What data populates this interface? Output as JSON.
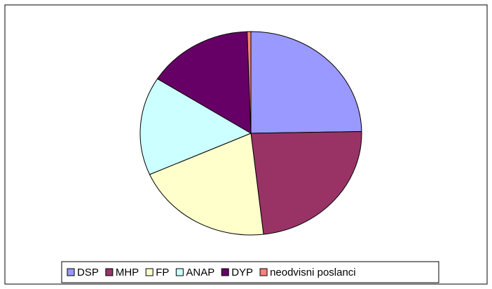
{
  "chart_data": {
    "type": "pie",
    "categories": [
      "DSP",
      "MHP",
      "FP",
      "ANAP",
      "DYP",
      "neodvisni poslanci"
    ],
    "values": [
      136,
      129,
      111,
      86,
      85,
      3
    ],
    "colors": [
      "#9999ff",
      "#993366",
      "#ffffcc",
      "#ccffff",
      "#660066",
      "#ff8080"
    ],
    "legend": "bottom"
  }
}
